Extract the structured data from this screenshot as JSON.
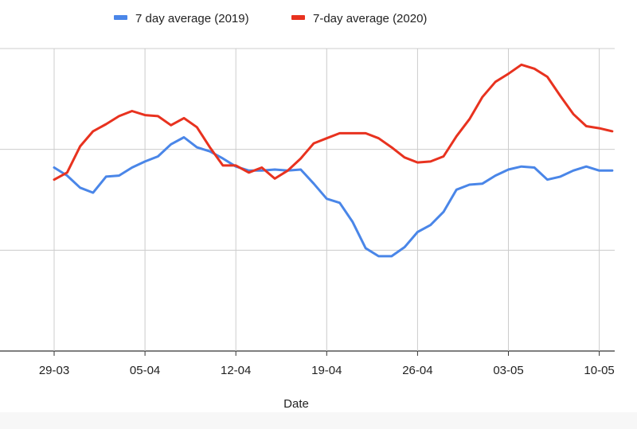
{
  "chart_data": {
    "type": "line",
    "title": "",
    "xlabel": "Date",
    "ylabel": "",
    "grid": true,
    "legend_position": "top",
    "ylim": [
      0,
      3
    ],
    "x_tick_labels": [
      "29-03",
      "05-04",
      "12-04",
      "19-04",
      "26-04",
      "03-05",
      "10-05"
    ],
    "x": [
      "29-03",
      "30-03",
      "31-03",
      "01-04",
      "02-04",
      "03-04",
      "04-04",
      "05-04",
      "06-04",
      "07-04",
      "08-04",
      "09-04",
      "10-04",
      "11-04",
      "12-04",
      "13-04",
      "14-04",
      "15-04",
      "16-04",
      "17-04",
      "18-04",
      "19-04",
      "20-04",
      "21-04",
      "22-04",
      "23-04",
      "24-04",
      "25-04",
      "26-04",
      "27-04",
      "28-04",
      "29-04",
      "30-04",
      "01-05",
      "02-05",
      "03-05",
      "04-05",
      "05-05",
      "06-05",
      "07-05",
      "08-05",
      "09-05",
      "10-05",
      "11-05"
    ],
    "series": [
      {
        "name": "7 day average (2019)",
        "color": "#4a86e8",
        "values": [
          1.82,
          1.74,
          1.62,
          1.57,
          1.73,
          1.74,
          1.82,
          1.88,
          1.93,
          2.05,
          2.12,
          2.02,
          1.98,
          1.91,
          1.83,
          1.79,
          1.79,
          1.8,
          1.79,
          1.8,
          1.66,
          1.51,
          1.47,
          1.28,
          1.02,
          0.94,
          0.94,
          1.03,
          1.18,
          1.25,
          1.38,
          1.6,
          1.65,
          1.66,
          1.74,
          1.8,
          1.83,
          1.82,
          1.7,
          1.73,
          1.79,
          1.83,
          1.79,
          1.79
        ]
      },
      {
        "name": "7-day average (2020)",
        "color": "#e8321f",
        "values": [
          1.7,
          1.77,
          2.03,
          2.18,
          2.25,
          2.33,
          2.38,
          2.34,
          2.33,
          2.24,
          2.31,
          2.22,
          2.02,
          1.84,
          1.84,
          1.77,
          1.82,
          1.71,
          1.79,
          1.91,
          2.06,
          2.11,
          2.16,
          2.16,
          2.16,
          2.11,
          2.02,
          1.92,
          1.87,
          1.88,
          1.93,
          2.13,
          2.3,
          2.52,
          2.67,
          2.75,
          2.84,
          2.8,
          2.72,
          2.53,
          2.35,
          2.23,
          2.21,
          2.18
        ]
      }
    ]
  }
}
